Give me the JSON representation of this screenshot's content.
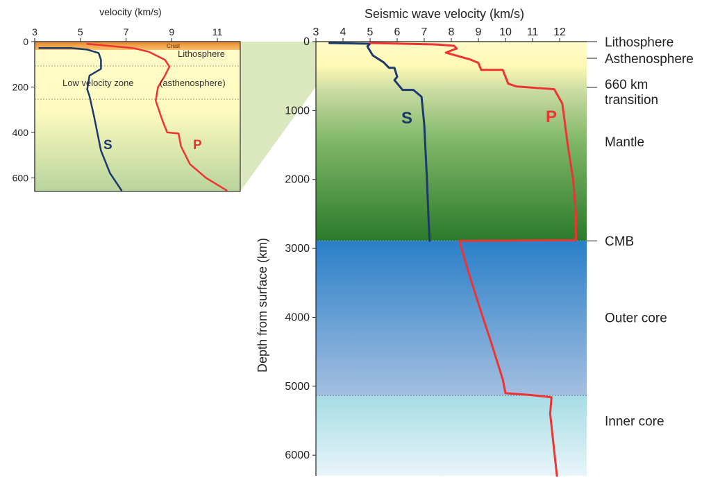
{
  "chart_data": [
    {
      "type": "line",
      "title": "Seismic wave velocity (km/s)",
      "xlabel": "Seismic wave velocity (km/s)",
      "ylabel": "Depth from surface (km)",
      "xlim": [
        3,
        13
      ],
      "ylim": [
        6300,
        0
      ],
      "x_ticks": [
        "3",
        "4",
        "5",
        "6",
        "7",
        "8",
        "9",
        "10",
        "11",
        "12"
      ],
      "y_ticks": [
        "0",
        "1000",
        "2000",
        "3000",
        "4000",
        "5000",
        "6000"
      ],
      "x_tick_values": [
        3,
        4,
        5,
        6,
        7,
        8,
        9,
        10,
        11,
        12
      ],
      "y_tick_values": [
        0,
        1000,
        2000,
        3000,
        4000,
        5000,
        6000
      ],
      "series": [
        {
          "name": "S",
          "color": "#1b3a6b",
          "points": [
            [
              3.5,
              20
            ],
            [
              5.0,
              30
            ],
            [
              4.9,
              70
            ],
            [
              5.1,
              200
            ],
            [
              5.5,
              300
            ],
            [
              5.7,
              380
            ],
            [
              5.9,
              380
            ],
            [
              6.0,
              510
            ],
            [
              5.9,
              560
            ],
            [
              6.2,
              700
            ],
            [
              6.6,
              700
            ],
            [
              6.9,
              800
            ],
            [
              7.0,
              1200
            ],
            [
              7.1,
              2000
            ],
            [
              7.15,
              2500
            ],
            [
              7.2,
              2890
            ]
          ]
        },
        {
          "name": "P",
          "color": "#ee3333",
          "points": [
            [
              5.0,
              20
            ],
            [
              7.4,
              40
            ],
            [
              8.1,
              60
            ],
            [
              8.2,
              100
            ],
            [
              7.8,
              160
            ],
            [
              8.7,
              260
            ],
            [
              9.0,
              310
            ],
            [
              9.1,
              410
            ],
            [
              9.9,
              410
            ],
            [
              10.1,
              610
            ],
            [
              10.4,
              650
            ],
            [
              11.8,
              690
            ],
            [
              12.1,
              900
            ],
            [
              12.3,
              1500
            ],
            [
              12.5,
              2000
            ],
            [
              12.6,
              2500
            ],
            [
              12.6,
              2880
            ],
            [
              8.3,
              2890
            ],
            [
              8.6,
              3300
            ],
            [
              9.0,
              3800
            ],
            [
              9.5,
              4400
            ],
            [
              9.9,
              4900
            ],
            [
              10.0,
              5100
            ],
            [
              11.0,
              5130
            ],
            [
              11.7,
              5160
            ],
            [
              11.65,
              5400
            ],
            [
              11.9,
              6300
            ]
          ]
        }
      ],
      "boundaries": [
        {
          "label": "Lithosphere",
          "depth": 0
        },
        {
          "label": "Asthenosphere",
          "depth": 230
        },
        {
          "label": "660 km\ntransition",
          "depth": 660
        },
        {
          "label": "Mantle",
          "depth": 1450
        },
        {
          "label": "CMB",
          "depth": 2890
        },
        {
          "label": "Outer core",
          "depth": 4000
        },
        {
          "label": "Inner core",
          "depth": 5500
        }
      ]
    },
    {
      "type": "line",
      "title": "velocity (km/s)",
      "xlabel": "velocity (km/s)",
      "ylabel": "",
      "xlim": [
        3,
        12
      ],
      "ylim": [
        660,
        0
      ],
      "x_ticks": [
        "3",
        "5",
        "7",
        "9",
        "11"
      ],
      "y_ticks": [
        "0",
        "200",
        "400",
        "600"
      ],
      "x_tick_values": [
        3,
        5,
        7,
        9,
        11
      ],
      "y_tick_values": [
        0,
        200,
        400,
        600
      ],
      "series": [
        {
          "name": "S",
          "color": "#1b3a6b",
          "points": [
            [
              3.2,
              28
            ],
            [
              4.6,
              28
            ],
            [
              5.3,
              35
            ],
            [
              5.8,
              50
            ],
            [
              5.9,
              80
            ],
            [
              5.9,
              120
            ],
            [
              5.4,
              150
            ],
            [
              5.3,
              210
            ],
            [
              5.4,
              240
            ],
            [
              5.6,
              330
            ],
            [
              5.9,
              480
            ],
            [
              6.3,
              580
            ],
            [
              6.8,
              655
            ]
          ]
        },
        {
          "name": "P",
          "color": "#ee3333",
          "points": [
            [
              5.3,
              10
            ],
            [
              7.3,
              28
            ],
            [
              8.0,
              45
            ],
            [
              8.7,
              80
            ],
            [
              8.9,
              110
            ],
            [
              8.7,
              150
            ],
            [
              8.4,
              200
            ],
            [
              8.3,
              260
            ],
            [
              8.6,
              350
            ],
            [
              8.8,
              400
            ],
            [
              9.3,
              405
            ],
            [
              9.4,
              460
            ],
            [
              9.8,
              540
            ],
            [
              10.5,
              600
            ],
            [
              11.4,
              655
            ]
          ]
        }
      ],
      "layers": [
        {
          "label": "Crust",
          "depth": 15
        },
        {
          "label": "Lithosphere",
          "depth": 50
        },
        {
          "label": "Low velocity zone",
          "depth": 170
        },
        {
          "label": "(asthenosphere)",
          "depth": 170
        }
      ]
    }
  ]
}
